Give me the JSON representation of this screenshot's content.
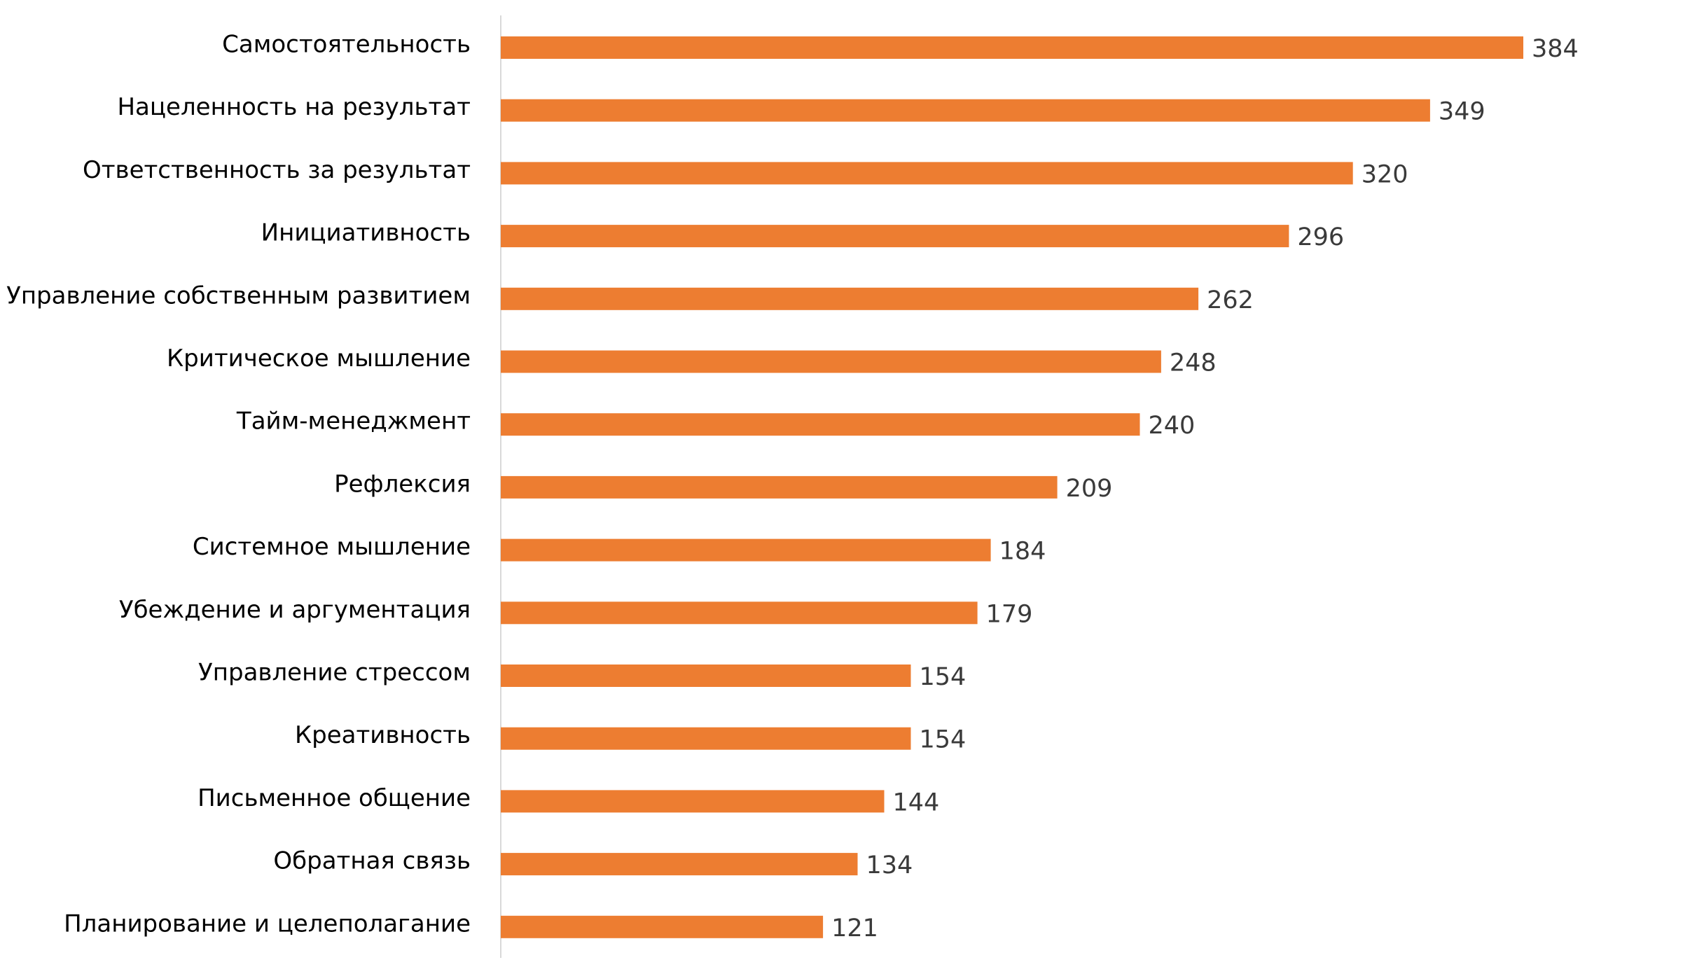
{
  "chart_data": {
    "type": "bar",
    "orientation": "horizontal",
    "title": "",
    "xlabel": "",
    "ylabel": "",
    "categories": [
      "Самостоятельность",
      "Нацеленность на результат",
      "Ответственность за результат",
      "Инициативность",
      "Управление собственным развитием",
      "Критическое мышление",
      "Тайм-менеджмент",
      "Рефлексия",
      "Системное мышление",
      "Убеждение и аргументация",
      "Управление стрессом",
      "Креативность",
      "Письменное общение",
      "Обратная связь",
      "Планирование и целеполагание"
    ],
    "values": [
      384,
      349,
      320,
      296,
      262,
      248,
      240,
      209,
      184,
      179,
      154,
      154,
      144,
      134,
      121
    ],
    "value_labels": [
      "384",
      "349",
      "320",
      "296",
      "262",
      "248",
      "240",
      "209",
      "184",
      "179",
      "154",
      "154",
      "144",
      "134",
      "121"
    ],
    "xlim": [
      0,
      384
    ],
    "grid": false,
    "legend": "none",
    "data_labels": true,
    "colors": {
      "bar": "#ED7D31",
      "axis": "#D9D9D9",
      "category_text": "#000000",
      "value_text": "#3A3A3A"
    }
  }
}
